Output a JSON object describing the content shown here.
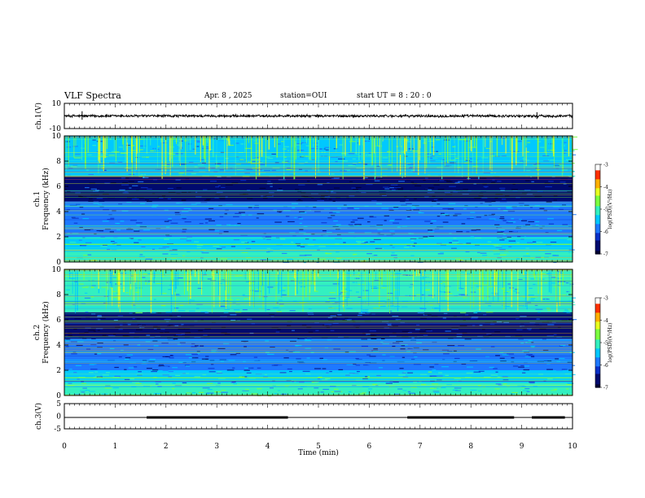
{
  "header": {
    "title": "VLF Spectra",
    "date": "Apr. 8 , 2025",
    "station": "station=OUI",
    "start": "start  UT  =   8 : 20 : 0"
  },
  "colors": {
    "colormap": [
      "#000033",
      "#000a6e",
      "#0a30c8",
      "#1e78ff",
      "#00c8ff",
      "#33f0c0",
      "#7cff40",
      "#e8ff20",
      "#ffb000",
      "#ff3000",
      "#ffffff"
    ]
  },
  "chart_data": [
    {
      "type": "line",
      "id": "ch1-waveform",
      "ylabel": "ch.1(V)",
      "ylim": [
        -10,
        10
      ],
      "yticks": [
        "10",
        "-10"
      ],
      "xlim": [
        0,
        10
      ],
      "baseline": 0,
      "amplitude_typical": 1.0,
      "spikes": [
        {
          "t": 0.35,
          "v": 1.5
        },
        {
          "t": 9.3,
          "v": 1.2
        }
      ]
    },
    {
      "type": "heatmap",
      "id": "ch1-spectrogram",
      "ylabel": "ch.1\nFrequency (kHz)",
      "ylim": [
        0,
        10
      ],
      "yticks": [
        "0",
        "2",
        "4",
        "6",
        "8",
        "10"
      ],
      "xlim": [
        0,
        10
      ],
      "colorbar": {
        "label": "log(PSD)(V²/Hz)",
        "range": [
          -7,
          -3
        ],
        "ticks": [
          "-3",
          "-4",
          "-5",
          "-6",
          "-7"
        ]
      },
      "bands": [
        {
          "f0": 0.0,
          "f1": 1.0,
          "level": -5.2
        },
        {
          "f0": 1.0,
          "f1": 2.0,
          "level": -5.6
        },
        {
          "f0": 2.0,
          "f1": 4.8,
          "level": -6.0
        },
        {
          "f0": 4.8,
          "f1": 5.6,
          "level": -6.8
        },
        {
          "f0": 5.6,
          "f1": 6.8,
          "level": -6.4
        },
        {
          "f0": 6.8,
          "f1": 10.0,
          "level": -5.3
        }
      ]
    },
    {
      "type": "heatmap",
      "id": "ch2-spectrogram",
      "ylabel": "ch.2\nFrequency (kHz)",
      "ylim": [
        0,
        10
      ],
      "yticks": [
        "0",
        "2",
        "4",
        "6",
        "8",
        "10"
      ],
      "xlim": [
        0,
        10
      ],
      "colorbar": {
        "label": "log(PSD)(V²/Hz)",
        "range": [
          -7,
          -3
        ],
        "ticks": [
          "-3",
          "-4",
          "-5",
          "-6",
          "-7"
        ]
      },
      "bands": [
        {
          "f0": 0.0,
          "f1": 1.0,
          "level": -5.2
        },
        {
          "f0": 1.0,
          "f1": 2.0,
          "level": -5.5
        },
        {
          "f0": 2.0,
          "f1": 4.5,
          "level": -6.0
        },
        {
          "f0": 4.5,
          "f1": 5.5,
          "level": -6.7
        },
        {
          "f0": 5.5,
          "f1": 6.6,
          "level": -6.4
        },
        {
          "f0": 6.6,
          "f1": 10.0,
          "level": -5.2
        }
      ]
    },
    {
      "type": "line",
      "id": "ch3-signal",
      "ylabel": "ch.3(V)",
      "ylim": [
        -5,
        5
      ],
      "yticks": [
        "5",
        "0",
        "-5"
      ],
      "xlim": [
        0,
        10
      ],
      "xlabel": "Time  (min)",
      "xticks": [
        "0",
        "1",
        "2",
        "3",
        "4",
        "5",
        "6",
        "7",
        "8",
        "9",
        "10"
      ],
      "level": -0.5,
      "thick_intervals": [
        [
          1.62,
          4.4
        ],
        [
          6.75,
          8.85
        ],
        [
          9.2,
          9.85
        ]
      ]
    }
  ]
}
